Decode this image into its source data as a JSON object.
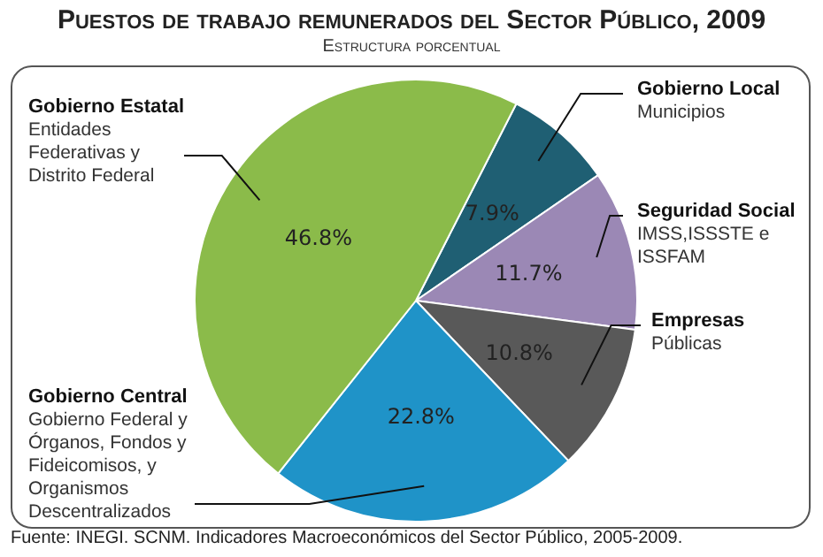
{
  "chart_data": {
    "type": "pie",
    "title": "Puestos de trabajo remunerados del Sector Público, 2009",
    "subtitle": "Estructura porcentual",
    "categories": [
      "Gobierno Local\nMunicipios",
      "Seguridad Social\nIMSS,ISSSTE e\nISSFAM",
      "Empresas\nPúblicas",
      "Gobierno Central\nGobierno Federal y\nÓrganos, Fondos y\nFideicomisos, y\nOrganismos\nDescentralizados",
      "Gobierno Estatal\nEntidades\nFederativas y\nDistrito Federal"
    ],
    "values": [
      7.9,
      11.7,
      10.8,
      22.8,
      46.8
    ],
    "colors": [
      "#1f5f73",
      "#9b88b5",
      "#595959",
      "#1f93c8",
      "#8bbb4a"
    ],
    "value_labels": [
      "7.9%",
      "11.7%",
      "10.8%",
      "22.8%",
      "46.8%"
    ],
    "annotations": [
      "Fuente: INEGI. SCNM. Indicadores Macroeconómicos del Sector Público, 2005-2009."
    ]
  }
}
